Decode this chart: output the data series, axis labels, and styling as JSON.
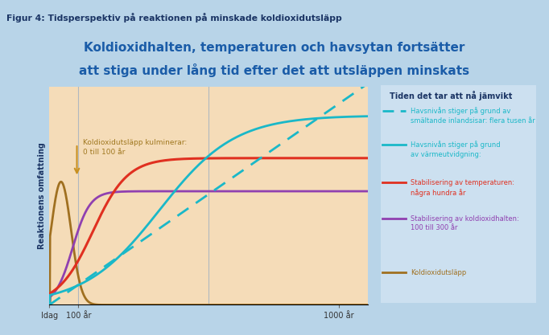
{
  "title_top": "Figur 4: Tidsperspektiv på reaktionen på minskade koldioxidutsläpp",
  "subtitle_line1": "Koldioxidhalten, temperaturen och havsytan fortsätter",
  "subtitle_line2": "att stiga under lång tid efter det att utsläppen minskats",
  "y_label": "Reaktionens omfattning",
  "title_color": "#1a3464",
  "subtitle_color": "#1a5ca8",
  "legend_title": "Tiden det tar att nå jämvikt",
  "legend_title_color": "#1a3464",
  "legend_items": [
    {
      "label": "Havsnivån stiger på grund av\nsmältande inlandsisar: flera tusen år",
      "color": "#1ab8c8",
      "linestyle": "dashed"
    },
    {
      "label": "Havsnivån stiger på grund\nav värmeutvidgning:",
      "color": "#1ab8c8",
      "linestyle": "solid"
    },
    {
      "label": "Stabilisering av temperaturen:\nnågra hundra år",
      "color": "#e03020",
      "linestyle": "solid"
    },
    {
      "label": "Stabilisering av koldioxidhalten:\n100 till 300 år",
      "color": "#9040b0",
      "linestyle": "solid"
    },
    {
      "label": "Koldioxidutsläpp",
      "color": "#a07020",
      "linestyle": "solid"
    }
  ],
  "annotation_text": "Koldioxidutsläpp kulminerar:\n0 till 100 år",
  "annotation_color": "#a07820",
  "arrow_color": "#c89020",
  "fig_bg": "#b8d4e8",
  "plot_bg": "#f5dcb8",
  "title_bg": "#dce8f4",
  "legend_bg": "#cce0f0"
}
